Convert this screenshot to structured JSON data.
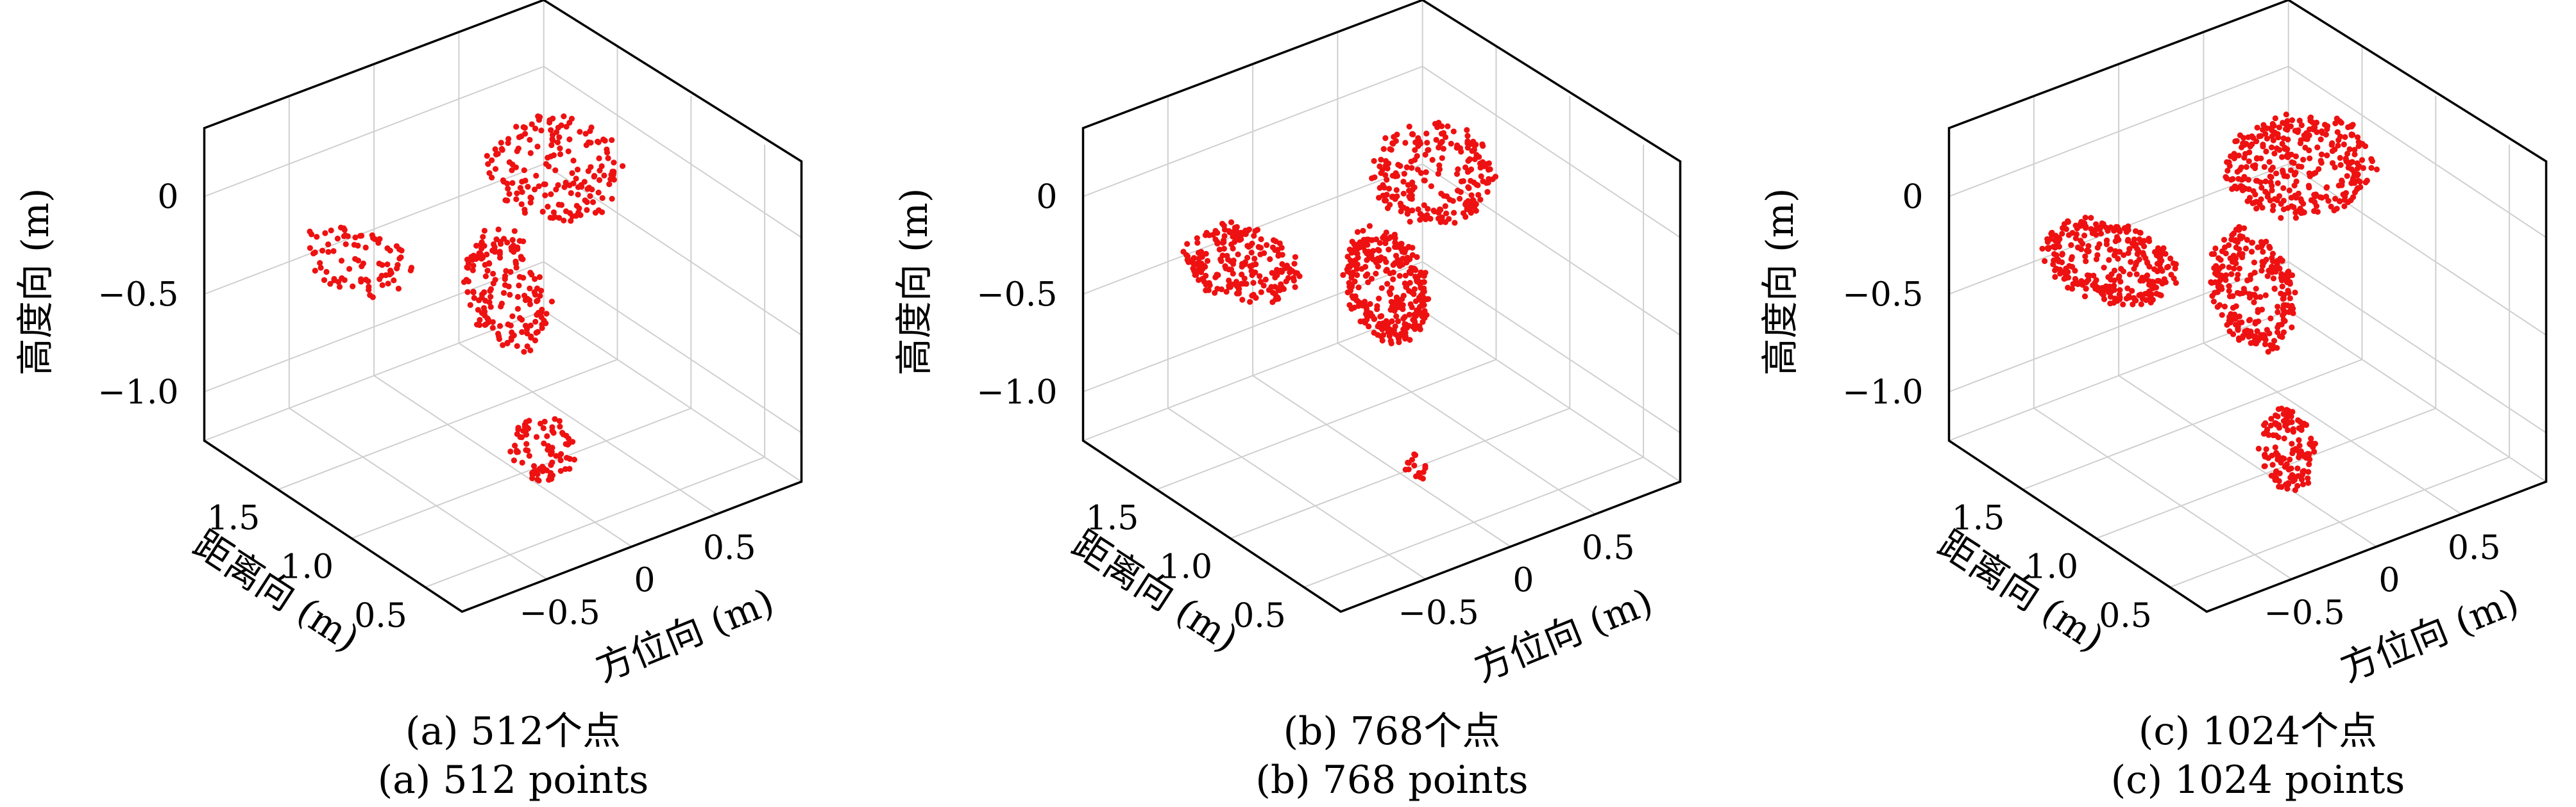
{
  "chart_data": [
    {
      "type": "scatter",
      "projection": "3d",
      "caption_zh": "(a) 512个点",
      "caption_en": "(a) 512 points",
      "n_points": 512,
      "xlabel": "方位向 (m)",
      "ylabel": "距离向 (m)",
      "zlabel": "高度向 (m)",
      "x_ticks": [
        "−0.5",
        "0",
        "0.5"
      ],
      "y_ticks": [
        "1.5",
        "1.0",
        "0.5"
      ],
      "z_ticks": [
        "0",
        "−0.5",
        "−1.0"
      ],
      "xlim": [
        -1.0,
        1.0
      ],
      "ylim": [
        0.25,
        2.0
      ],
      "zlim": [
        -1.25,
        0.35
      ],
      "grid": true,
      "point_color": "#ee1111",
      "clusters": [
        {
          "part": "upper-right wing",
          "x": [
            0.05,
            0.7
          ],
          "y": [
            0.9,
            1.5
          ],
          "z": [
            -0.15,
            0.3
          ],
          "share": 0.34
        },
        {
          "part": "upper-left wing",
          "x": [
            -0.85,
            -0.4
          ],
          "y": [
            1.1,
            1.7
          ],
          "z": [
            -0.25,
            -0.05
          ],
          "share": 0.16
        },
        {
          "part": "central column",
          "x": [
            -0.1,
            0.2
          ],
          "y": [
            0.9,
            1.4
          ],
          "z": [
            -0.7,
            -0.1
          ],
          "share": 0.34
        },
        {
          "part": "lower blob",
          "x": [
            -0.15,
            0.15
          ],
          "y": [
            0.7,
            1.0
          ],
          "z": [
            -1.2,
            -0.9
          ],
          "share": 0.16
        }
      ]
    },
    {
      "type": "scatter",
      "projection": "3d",
      "caption_zh": "(b) 768个点",
      "caption_en": "(b) 768 points",
      "n_points": 768,
      "xlabel": "方位向 (m)",
      "ylabel": "距离向 (m)",
      "zlabel": "高度向 (m)",
      "x_ticks": [
        "−0.5",
        "0",
        "0.5"
      ],
      "y_ticks": [
        "1.5",
        "1.0",
        "0.5"
      ],
      "z_ticks": [
        "0",
        "−0.5",
        "−1.0"
      ],
      "xlim": [
        -1.0,
        1.0
      ],
      "ylim": [
        0.25,
        2.0
      ],
      "zlim": [
        -1.25,
        0.35
      ],
      "grid": true,
      "point_color": "#ee1111",
      "clusters": [
        {
          "part": "upper-right wing",
          "x": [
            0.05,
            0.65
          ],
          "y": [
            0.9,
            1.45
          ],
          "z": [
            -0.15,
            0.3
          ],
          "share": 0.3
        },
        {
          "part": "upper-left wing",
          "x": [
            -0.85,
            -0.35
          ],
          "y": [
            1.1,
            1.7
          ],
          "z": [
            -0.3,
            -0.05
          ],
          "share": 0.28
        },
        {
          "part": "central column",
          "x": [
            -0.1,
            0.2
          ],
          "y": [
            0.9,
            1.4
          ],
          "z": [
            -0.65,
            -0.1
          ],
          "share": 0.4
        },
        {
          "part": "lower blob",
          "x": [
            -0.06,
            0.06
          ],
          "y": [
            0.8,
            0.95
          ],
          "z": [
            -1.2,
            -1.1
          ],
          "share": 0.02
        }
      ]
    },
    {
      "type": "scatter",
      "projection": "3d",
      "caption_zh": "(c) 1024个点",
      "caption_en": "(c) 1024 points",
      "n_points": 1024,
      "xlabel": "方位向 (m)",
      "ylabel": "距离向 (m)",
      "zlabel": "高度向 (m)",
      "x_ticks": [
        "−0.5",
        "0",
        "0.5"
      ],
      "y_ticks": [
        "1.5",
        "1.0",
        "0.5"
      ],
      "z_ticks": [
        "0",
        "−0.5",
        "−1.0"
      ],
      "xlim": [
        -1.0,
        1.0
      ],
      "ylim": [
        0.25,
        2.0
      ],
      "zlim": [
        -1.25,
        0.35
      ],
      "grid": true,
      "point_color": "#ee1111",
      "clusters": [
        {
          "part": "upper-right wing",
          "x": [
            0.0,
            0.75
          ],
          "y": [
            0.9,
            1.5
          ],
          "z": [
            -0.1,
            0.3
          ],
          "share": 0.32
        },
        {
          "part": "upper-left wing",
          "x": [
            -0.85,
            -0.3
          ],
          "y": [
            1.05,
            1.75
          ],
          "z": [
            -0.3,
            -0.05
          ],
          "share": 0.3
        },
        {
          "part": "central column",
          "x": [
            -0.1,
            0.2
          ],
          "y": [
            0.9,
            1.4
          ],
          "z": [
            -0.7,
            -0.1
          ],
          "share": 0.25
        },
        {
          "part": "lower blob",
          "x": [
            -0.12,
            0.12
          ],
          "y": [
            0.7,
            1.0
          ],
          "z": [
            -1.25,
            -0.85
          ],
          "share": 0.13
        }
      ]
    }
  ]
}
